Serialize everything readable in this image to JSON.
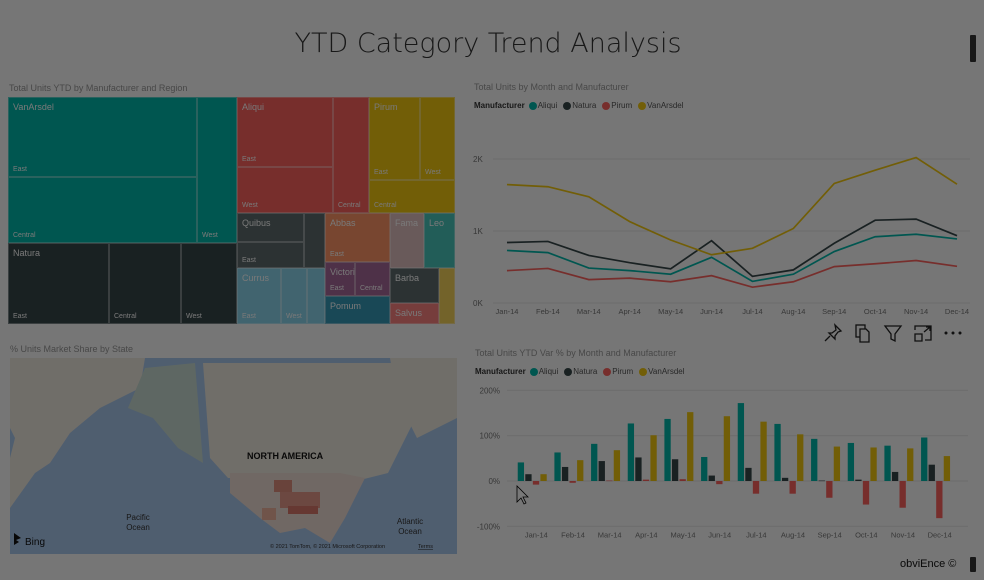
{
  "page_title": "YTD Category Trend Analysis",
  "footer": "obviEnce ©",
  "colors": {
    "aliqui": "#01B8AA",
    "natura": "#374649",
    "pirum": "#FD625E",
    "vanarsdel": "#F2C80F"
  },
  "treemap": {
    "title": "Total Units YTD by Manufacturer and Region",
    "groups": {
      "vanarsdel": {
        "name": "VanArsdel",
        "east": "East",
        "central": "Central",
        "west": "West"
      },
      "natura": {
        "name": "Natura",
        "east": "East",
        "central": "Central",
        "west": "West"
      },
      "aliqui": {
        "name": "Aliqui",
        "east": "East",
        "west": "West",
        "central": "Central"
      },
      "pirum": {
        "name": "Pirum",
        "east": "East",
        "west": "West",
        "central": "Central"
      },
      "quibus": {
        "name": "Quibus",
        "east": "East"
      },
      "currus": {
        "name": "Currus",
        "east": "East",
        "west": "West"
      },
      "abbas": {
        "name": "Abbas",
        "east": "East"
      },
      "victoria": {
        "name": "Victoria",
        "east": "East",
        "central": "Central"
      },
      "pomum": {
        "name": "Pomum"
      },
      "fama": {
        "name": "Fama"
      },
      "leo": {
        "name": "Leo"
      },
      "barba": {
        "name": "Barba"
      },
      "salvus": {
        "name": "Salvus"
      }
    }
  },
  "map": {
    "title": "% Units Market Share by State",
    "labels": {
      "continent": "NORTH AMERICA",
      "pacific_1": "Pacific",
      "pacific_2": "Ocean",
      "atlantic_1": "Atlantic",
      "atlantic_2": "Ocean"
    },
    "brand": "Bing",
    "copyright": "© 2021 TomTom, © 2021 Microsoft Corporation",
    "terms": "Terms"
  },
  "visual_actions": [
    "pin-icon",
    "copy-icon",
    "filter-icon",
    "focus-mode-icon",
    "more-options-icon"
  ],
  "chart_data": [
    {
      "type": "line",
      "title": "Total Units by Month and Manufacturer",
      "legend_title": "Manufacturer",
      "legend_position": "top-left",
      "grid": true,
      "categories": [
        "Jan-14",
        "Feb-14",
        "Mar-14",
        "Apr-14",
        "May-14",
        "Jun-14",
        "Jul-14",
        "Aug-14",
        "Sep-14",
        "Oct-14",
        "Nov-14",
        "Dec-14"
      ],
      "y_ticks": [
        "0K",
        "1K",
        "2K"
      ],
      "ylim": [
        0,
        2300
      ],
      "series": [
        {
          "name": "Aliqui",
          "color": "#01B8AA",
          "values": [
            730,
            700,
            485,
            450,
            400,
            635,
            300,
            400,
            715,
            920,
            955,
            890
          ]
        },
        {
          "name": "Natura",
          "color": "#374649",
          "values": [
            840,
            855,
            660,
            560,
            475,
            865,
            370,
            460,
            830,
            1150,
            1165,
            935
          ]
        },
        {
          "name": "Pirum",
          "color": "#FD625E",
          "values": [
            450,
            480,
            325,
            345,
            295,
            380,
            220,
            295,
            505,
            545,
            590,
            510
          ]
        },
        {
          "name": "VanArsdel",
          "color": "#F2C80F",
          "values": [
            1645,
            1615,
            1475,
            1130,
            875,
            670,
            760,
            1035,
            1660,
            1845,
            2020,
            1650
          ]
        }
      ]
    },
    {
      "type": "bar",
      "title": "Total Units YTD Var % by Month and Manufacturer",
      "legend_title": "Manufacturer",
      "legend_position": "top-left",
      "grid": true,
      "categories": [
        "Jan-14",
        "Feb-14",
        "Mar-14",
        "Apr-14",
        "May-14",
        "Jun-14",
        "Jul-14",
        "Aug-14",
        "Sep-14",
        "Oct-14",
        "Nov-14",
        "Dec-14"
      ],
      "y_ticks": [
        "-100%",
        "0%",
        "100%",
        "200%"
      ],
      "ylim": [
        -100,
        200
      ],
      "series": [
        {
          "name": "Aliqui",
          "color": "#01B8AA",
          "values": [
            41,
            63,
            82,
            127,
            137,
            53,
            172,
            126,
            93,
            84,
            78,
            96
          ]
        },
        {
          "name": "Natura",
          "color": "#374649",
          "values": [
            15,
            31,
            44,
            52,
            48,
            12,
            29,
            7,
            1,
            3,
            20,
            36
          ]
        },
        {
          "name": "Pirum",
          "color": "#FD625E",
          "values": [
            -8,
            -4,
            1,
            3,
            4,
            -7,
            -28,
            -28,
            -37,
            -52,
            -59,
            -82
          ]
        },
        {
          "name": "VanArsdel",
          "color": "#F2C80F",
          "values": [
            15,
            46,
            68,
            101,
            152,
            143,
            131,
            103,
            76,
            74,
            72,
            55
          ]
        }
      ]
    }
  ]
}
